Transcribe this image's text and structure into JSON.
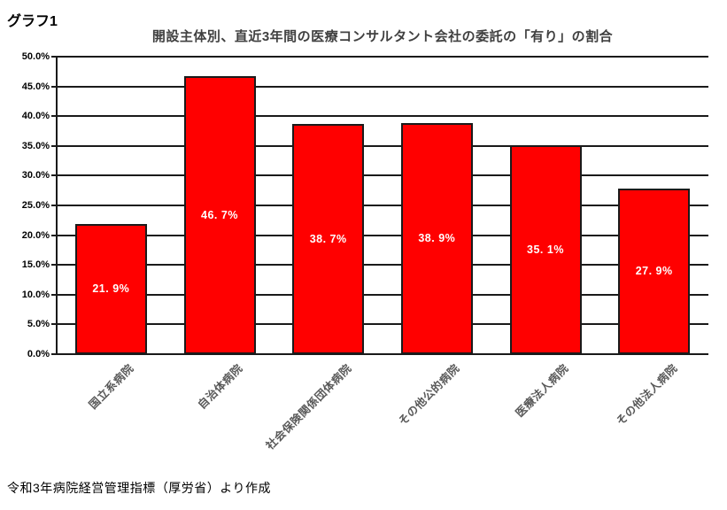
{
  "page": {
    "corner_label": "グラフ1",
    "footer": "令和3年病院経営管理指標（厚労省）より作成",
    "background": "#FFFFFF"
  },
  "chart_data": {
    "type": "bar",
    "title": "開設主体別、直近3年間の医療コンサルタント会社の委託の「有り」の割合",
    "categories": [
      "国立系病院",
      "自治体病院",
      "社会保険関係団体病院",
      "その他公的病院",
      "医療法人病院",
      "その他法人病院"
    ],
    "values": [
      21.9,
      46.7,
      38.7,
      38.9,
      35.1,
      27.9
    ],
    "value_labels": [
      "21. 9%",
      "46. 7%",
      "38. 7%",
      "38. 9%",
      "35. 1%",
      "27. 9%"
    ],
    "xlabel": "",
    "ylabel": "",
    "ylim": [
      0,
      50
    ],
    "ytick_step": 5,
    "ytick_labels": [
      "0.0%",
      "5.0%",
      "10.0%",
      "15.0%",
      "20.0%",
      "25.0%",
      "30.0%",
      "35.0%",
      "40.0%",
      "45.0%",
      "50.0%"
    ],
    "grid": true,
    "legend": false,
    "bar_color": "#FF0000",
    "bar_border_color": "#1A1A1A",
    "value_label_color": "#FFFFFF",
    "category_label_color": "#595959",
    "title_color": "#404040",
    "axis_color": "#1A1A1A"
  }
}
